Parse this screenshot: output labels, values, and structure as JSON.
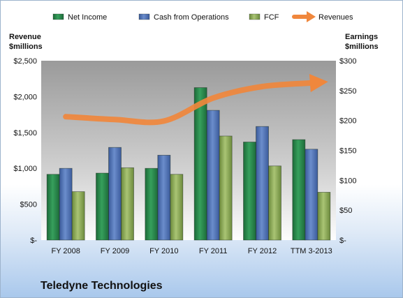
{
  "chart_data": {
    "type": "bar",
    "company": "Teledyne Technologies",
    "categories": [
      "FY 2008",
      "FY 2009",
      "FY 2010",
      "FY 2011",
      "FY 2012",
      "TTM 3-2013"
    ],
    "y_left": {
      "title_lines": [
        "Revenue",
        "$millions"
      ],
      "range": [
        0,
        2500
      ],
      "ticks": [
        0,
        500,
        1000,
        1500,
        2000,
        2500
      ],
      "tick_labels": [
        "$-",
        "$500",
        "$1,000",
        "$1,500",
        "$2,000",
        "$2,500"
      ]
    },
    "y_right": {
      "title_lines": [
        "Earnings",
        "$millions"
      ],
      "range": [
        0,
        300
      ],
      "ticks": [
        0,
        50,
        100,
        150,
        200,
        250,
        300
      ],
      "tick_labels": [
        "$-",
        "$50",
        "$100",
        "$150",
        "$200",
        "$250",
        "$300"
      ]
    },
    "series": [
      {
        "name": "Net Income",
        "axis": "right",
        "kind": "bar",
        "color": "#2e8b4f",
        "values": [
          110,
          112,
          120,
          255,
          164,
          168
        ]
      },
      {
        "name": "Cash from Operations",
        "axis": "right",
        "kind": "bar",
        "color": "#5275b8",
        "values": [
          120,
          155,
          142,
          217,
          190,
          152
        ]
      },
      {
        "name": "FCF",
        "axis": "right",
        "kind": "bar",
        "color": "#8fae5a",
        "values": [
          81,
          121,
          110,
          174,
          124,
          80
        ]
      },
      {
        "name": "Revenues",
        "axis": "left",
        "kind": "arrow",
        "color": "#f0873c",
        "values": [
          1720,
          1680,
          1660,
          1980,
          2140,
          2190
        ]
      }
    ],
    "legend_position": "top",
    "grid": false
  }
}
